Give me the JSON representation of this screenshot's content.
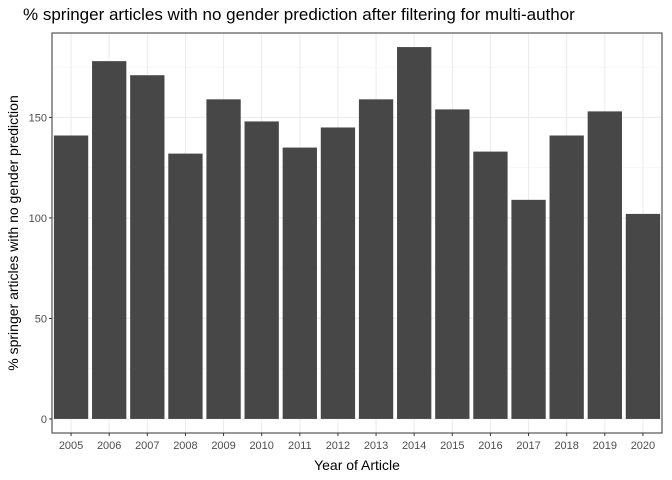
{
  "chart_data": {
    "type": "bar",
    "title": "% springer articles with no gender prediction after filtering for multi-author",
    "xlabel": "Year of Article",
    "ylabel": "% springer articles with no gender prediction",
    "categories": [
      "2005",
      "2006",
      "2007",
      "2008",
      "2009",
      "2010",
      "2011",
      "2012",
      "2013",
      "2014",
      "2015",
      "2016",
      "2017",
      "2018",
      "2019",
      "2020"
    ],
    "values": [
      141,
      178,
      171,
      132,
      159,
      148,
      135,
      145,
      159,
      185,
      154,
      133,
      109,
      141,
      153,
      102
    ],
    "ylim": [
      -7,
      192
    ],
    "yticks": [
      0,
      50,
      100,
      150
    ],
    "grid": true,
    "colors": {
      "bar": "#474747",
      "panel_border": "#333333",
      "grid_major": "#ebebeb",
      "grid_minor": "#f5f5f5",
      "tick_text": "#4d4d4d"
    }
  }
}
